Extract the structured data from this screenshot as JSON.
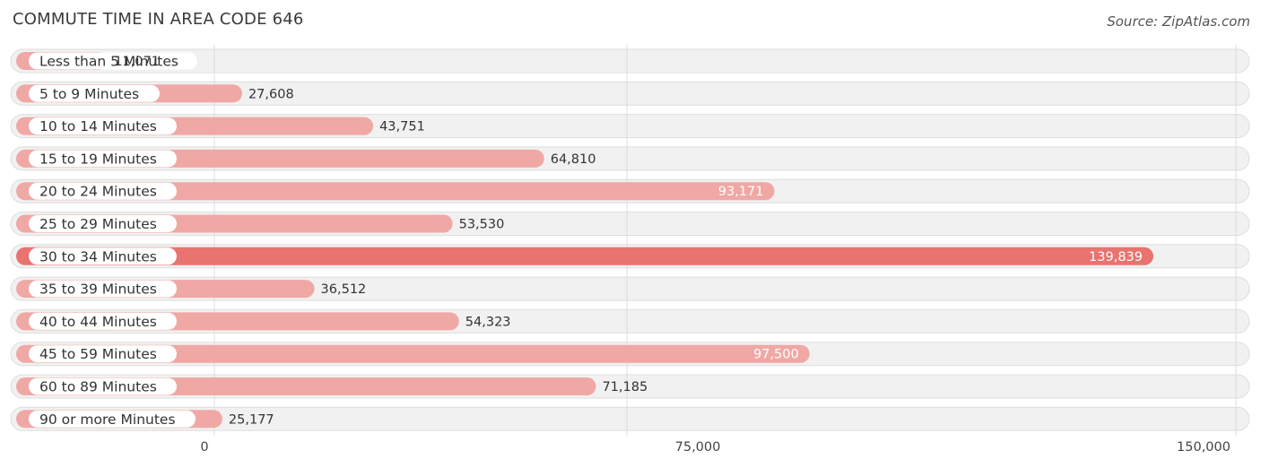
{
  "title": "COMMUTE TIME IN AREA CODE 646",
  "source": "Source: ZipAtlas.com",
  "colors": {
    "bar": "#f0a8a5",
    "bar_max": "#e8736f",
    "row_bg": "#f1f1f1"
  },
  "chart_data": {
    "type": "bar",
    "orientation": "horizontal",
    "title": "COMMUTE TIME IN AREA CODE 646",
    "categories": [
      "Less than 5 Minutes",
      "5 to 9 Minutes",
      "10 to 14 Minutes",
      "15 to 19 Minutes",
      "20 to 24 Minutes",
      "25 to 29 Minutes",
      "30 to 34 Minutes",
      "35 to 39 Minutes",
      "40 to 44 Minutes",
      "45 to 59 Minutes",
      "60 to 89 Minutes",
      "90 or more Minutes"
    ],
    "values": [
      11071,
      27608,
      43751,
      64810,
      93171,
      53530,
      139839,
      36512,
      54323,
      97500,
      71185,
      25177
    ],
    "value_labels": [
      "11,071",
      "27,608",
      "43,751",
      "64,810",
      "93,171",
      "53,530",
      "139,839",
      "36,512",
      "54,323",
      "97,500",
      "71,185",
      "25,177"
    ],
    "xlim": [
      0,
      150000
    ],
    "ticks": [
      0,
      75000,
      150000
    ],
    "tick_labels": [
      "0",
      "75,000",
      "150,000"
    ],
    "xlabel": "",
    "ylabel": "",
    "grid": true
  }
}
